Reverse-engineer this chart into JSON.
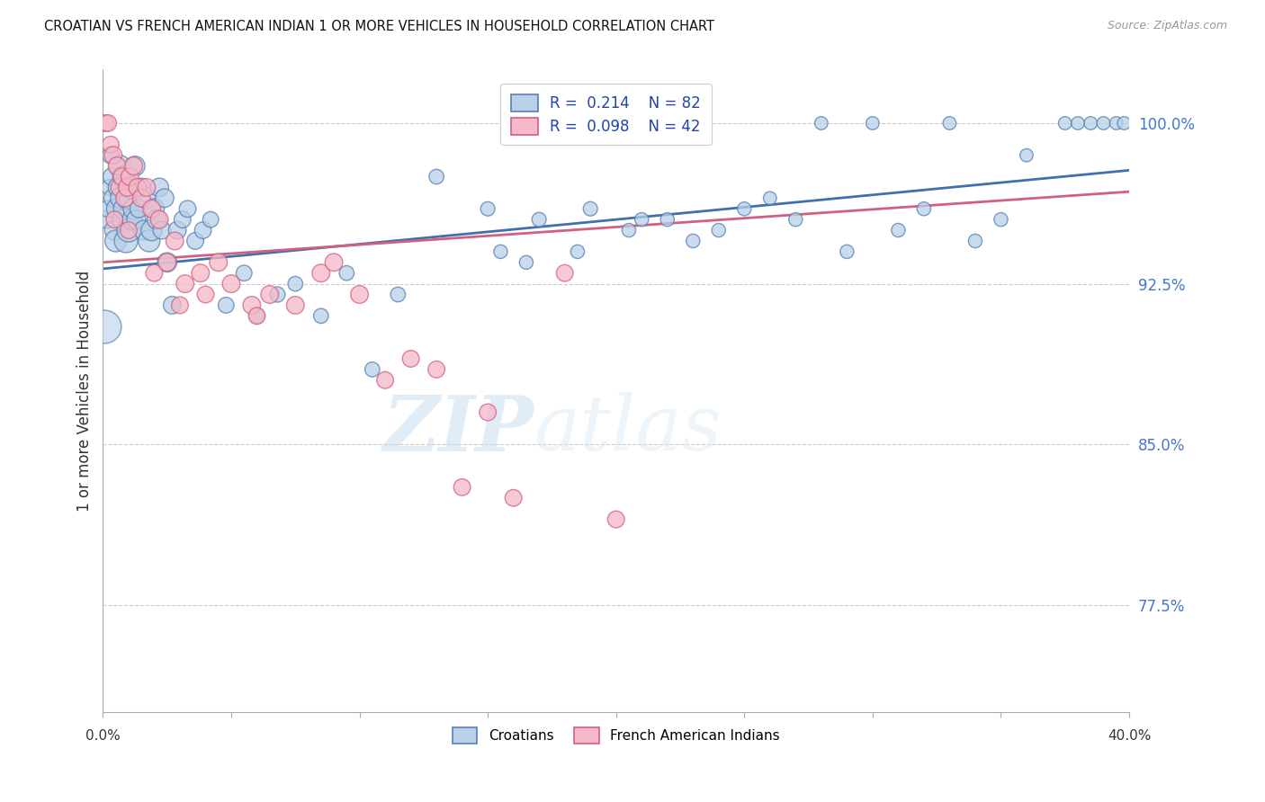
{
  "title": "CROATIAN VS FRENCH AMERICAN INDIAN 1 OR MORE VEHICLES IN HOUSEHOLD CORRELATION CHART",
  "source": "Source: ZipAtlas.com",
  "ylabel": "1 or more Vehicles in Household",
  "xlim": [
    0.0,
    40.0
  ],
  "ylim": [
    72.5,
    102.5
  ],
  "yticks": [
    77.5,
    85.0,
    92.5,
    100.0
  ],
  "ytick_labels": [
    "77.5%",
    "85.0%",
    "92.5%",
    "100.0%"
  ],
  "legend_r1": "R =  0.214",
  "legend_n1": "N = 82",
  "legend_r2": "R =  0.098",
  "legend_n2": "N = 42",
  "color_blue_fill": "#b8d0e8",
  "color_blue_edge": "#5580b0",
  "color_pink_fill": "#f5b8c8",
  "color_pink_edge": "#d06080",
  "color_blue_line": "#4070b0",
  "color_pink_line": "#d06080",
  "background": "#ffffff",
  "watermark_zip": "ZIP",
  "watermark_atlas": "atlas",
  "croatian_x": [
    0.15,
    0.2,
    0.25,
    0.3,
    0.35,
    0.4,
    0.45,
    0.5,
    0.55,
    0.6,
    0.65,
    0.7,
    0.75,
    0.8,
    0.85,
    0.9,
    0.95,
    1.0,
    1.05,
    1.1,
    1.15,
    1.2,
    1.25,
    1.3,
    1.4,
    1.5,
    1.6,
    1.7,
    1.8,
    1.9,
    2.0,
    2.1,
    2.2,
    2.3,
    2.4,
    2.5,
    2.7,
    2.9,
    3.1,
    3.3,
    3.6,
    3.9,
    4.2,
    4.8,
    5.5,
    6.0,
    6.8,
    7.5,
    8.5,
    9.5,
    10.5,
    11.5,
    13.0,
    15.0,
    17.0,
    19.0,
    21.0,
    24.0,
    26.0,
    28.0,
    30.0,
    33.0,
    36.0,
    37.5,
    38.5,
    39.0,
    39.5,
    15.5,
    16.5,
    18.5,
    20.5,
    22.0,
    23.0,
    25.0,
    27.0,
    29.0,
    31.0,
    32.0,
    34.0,
    35.0,
    38.0,
    39.8
  ],
  "croatian_y": [
    95.5,
    96.0,
    97.0,
    98.5,
    97.5,
    96.5,
    95.0,
    94.5,
    96.0,
    97.0,
    98.0,
    96.5,
    95.5,
    97.5,
    96.0,
    94.5,
    96.5,
    95.0,
    96.5,
    97.0,
    95.5,
    96.0,
    98.0,
    95.5,
    96.0,
    97.0,
    95.0,
    96.5,
    94.5,
    95.0,
    96.0,
    95.5,
    97.0,
    95.0,
    96.5,
    93.5,
    91.5,
    95.0,
    95.5,
    96.0,
    94.5,
    95.0,
    95.5,
    91.5,
    93.0,
    91.0,
    92.0,
    92.5,
    91.0,
    93.0,
    88.5,
    92.0,
    97.5,
    96.0,
    95.5,
    96.0,
    95.5,
    95.0,
    96.5,
    100.0,
    100.0,
    100.0,
    98.5,
    100.0,
    100.0,
    100.0,
    100.0,
    94.0,
    93.5,
    94.0,
    95.0,
    95.5,
    94.5,
    96.0,
    95.5,
    94.0,
    95.0,
    96.0,
    94.5,
    95.5,
    100.0,
    100.0
  ],
  "croatian_size": [
    200,
    180,
    160,
    180,
    200,
    220,
    250,
    300,
    280,
    260,
    300,
    280,
    260,
    300,
    320,
    350,
    300,
    350,
    280,
    300,
    260,
    280,
    250,
    230,
    200,
    220,
    250,
    280,
    300,
    280,
    260,
    240,
    220,
    200,
    220,
    240,
    200,
    200,
    180,
    180,
    180,
    180,
    160,
    160,
    160,
    150,
    150,
    140,
    140,
    140,
    140,
    140,
    140,
    130,
    130,
    130,
    120,
    120,
    110,
    110,
    110,
    110,
    110,
    110,
    110,
    110,
    110,
    120,
    120,
    120,
    120,
    120,
    120,
    120,
    120,
    120,
    120,
    120,
    120,
    120,
    110,
    110
  ],
  "french_x": [
    0.1,
    0.2,
    0.3,
    0.4,
    0.55,
    0.65,
    0.75,
    0.85,
    0.95,
    1.05,
    1.2,
    1.35,
    1.5,
    1.7,
    1.9,
    2.2,
    2.5,
    2.8,
    3.2,
    3.8,
    4.5,
    5.0,
    5.8,
    6.5,
    7.5,
    8.5,
    9.0,
    10.0,
    11.0,
    12.0,
    13.0,
    14.0,
    15.0,
    16.0,
    18.0,
    20.0,
    0.45,
    1.0,
    2.0,
    3.0,
    4.0,
    6.0
  ],
  "french_y": [
    100.0,
    100.0,
    99.0,
    98.5,
    98.0,
    97.0,
    97.5,
    96.5,
    97.0,
    97.5,
    98.0,
    97.0,
    96.5,
    97.0,
    96.0,
    95.5,
    93.5,
    94.5,
    92.5,
    93.0,
    93.5,
    92.5,
    91.5,
    92.0,
    91.5,
    93.0,
    93.5,
    92.0,
    88.0,
    89.0,
    88.5,
    83.0,
    86.5,
    82.5,
    93.0,
    81.5,
    95.5,
    95.0,
    93.0,
    91.5,
    92.0,
    91.0
  ],
  "french_size": [
    180,
    180,
    180,
    200,
    200,
    200,
    200,
    200,
    200,
    200,
    200,
    200,
    200,
    200,
    200,
    200,
    200,
    200,
    200,
    200,
    200,
    200,
    200,
    200,
    200,
    200,
    200,
    200,
    180,
    180,
    180,
    180,
    180,
    180,
    180,
    180,
    180,
    180,
    180,
    180,
    180,
    180
  ],
  "reg_blue_x0": 0.0,
  "reg_blue_y0": 93.2,
  "reg_blue_x1": 40.0,
  "reg_blue_y1": 97.8,
  "reg_pink_x0": 0.0,
  "reg_pink_y0": 93.5,
  "reg_pink_x1": 40.0,
  "reg_pink_y1": 96.8
}
